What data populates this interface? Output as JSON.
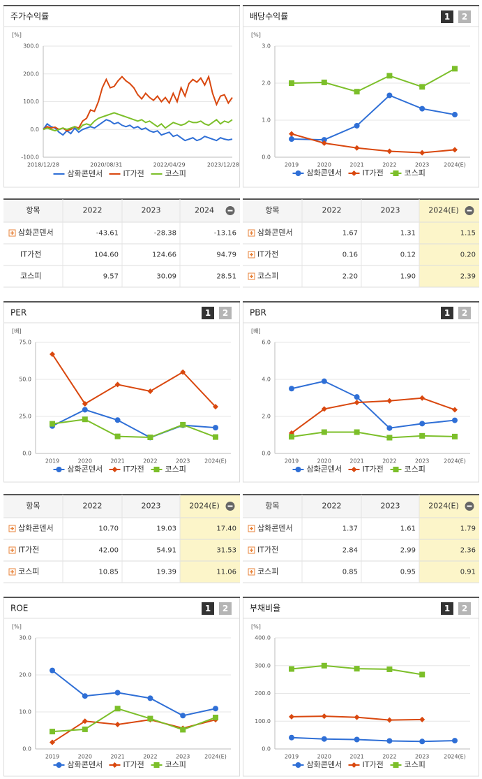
{
  "chart_data": [
    {
      "type": "line",
      "title": "주가수익률",
      "unit": "[%]",
      "markers": false,
      "grid": true,
      "categories": [
        "2018/12/28",
        null,
        null,
        null,
        null,
        null,
        null,
        null,
        null,
        null,
        null,
        null,
        null,
        null,
        null,
        null,
        "2020/08/31",
        null,
        null,
        null,
        null,
        null,
        null,
        null,
        null,
        null,
        null,
        null,
        null,
        null,
        null,
        null,
        "2022/04/29",
        null,
        null,
        null,
        null,
        null,
        null,
        null,
        null,
        null,
        null,
        null,
        null,
        null,
        null,
        null,
        "2023/12/28"
      ],
      "ylim": [
        -100,
        300
      ],
      "yticks": [
        {
          "value": -100,
          "label": "-100.0"
        },
        {
          "value": 0,
          "label": "0.0"
        },
        {
          "value": 100,
          "label": "100.0"
        },
        {
          "value": 200,
          "label": "200.0"
        },
        {
          "value": 300,
          "label": "300.0"
        }
      ],
      "series": [
        {
          "name": "삼화콘덴서",
          "color": "#2f6fd6",
          "values": [
            0,
            20,
            10,
            5,
            -10,
            -20,
            -5,
            -15,
            5,
            -10,
            0,
            5,
            10,
            5,
            15,
            25,
            35,
            30,
            20,
            25,
            15,
            10,
            15,
            5,
            10,
            0,
            5,
            -5,
            -10,
            -5,
            -20,
            -15,
            -10,
            -25,
            -20,
            -30,
            -40,
            -35,
            -30,
            -40,
            -35,
            -25,
            -30,
            -35,
            -40,
            -30,
            -35,
            -38,
            -35
          ]
        },
        {
          "name": "IT가전",
          "color": "#d9480f",
          "values": [
            0,
            10,
            5,
            8,
            0,
            5,
            -5,
            0,
            10,
            5,
            30,
            40,
            70,
            65,
            100,
            150,
            180,
            150,
            155,
            175,
            190,
            175,
            165,
            150,
            125,
            110,
            130,
            115,
            105,
            120,
            100,
            115,
            95,
            130,
            100,
            150,
            120,
            165,
            180,
            170,
            185,
            160,
            190,
            130,
            90,
            120,
            125,
            95,
            115
          ]
        },
        {
          "name": "코스피",
          "color": "#7cbf2a",
          "values": [
            0,
            5,
            0,
            -5,
            0,
            5,
            0,
            5,
            10,
            0,
            15,
            20,
            15,
            30,
            40,
            45,
            50,
            55,
            60,
            55,
            50,
            45,
            40,
            35,
            30,
            35,
            25,
            30,
            20,
            10,
            20,
            5,
            15,
            25,
            20,
            15,
            20,
            30,
            25,
            25,
            30,
            20,
            15,
            25,
            35,
            20,
            30,
            25,
            35
          ]
        }
      ]
    },
    {
      "type": "line",
      "title": "배당수익률",
      "tabs": [
        "1",
        "2"
      ],
      "unit": "[%]",
      "markers": true,
      "grid": true,
      "categories": [
        "2019",
        "2020",
        "2021",
        "2022",
        "2023",
        "2024(E)"
      ],
      "ylim": [
        0,
        3
      ],
      "yticks": [
        {
          "value": 0,
          "label": "0.0"
        },
        {
          "value": 1,
          "label": "1.0"
        },
        {
          "value": 2,
          "label": "2.0"
        },
        {
          "value": 3,
          "label": "3.0"
        }
      ],
      "series": [
        {
          "name": "삼화콘덴서",
          "color": "#2f6fd6",
          "values": [
            0.49,
            0.47,
            0.85,
            1.67,
            1.31,
            1.15
          ]
        },
        {
          "name": "IT가전",
          "color": "#d9480f",
          "values": [
            0.63,
            0.38,
            0.25,
            0.16,
            0.12,
            0.2
          ]
        },
        {
          "name": "코스피",
          "color": "#7cbf2a",
          "values": [
            2.0,
            2.02,
            1.77,
            2.2,
            1.9,
            2.39
          ]
        }
      ]
    },
    {
      "type": "line",
      "title": "PER",
      "tabs": [
        "1",
        "2"
      ],
      "unit": "[배]",
      "markers": true,
      "grid": true,
      "categories": [
        "2019",
        "2020",
        "2021",
        "2022",
        "2023",
        "2024(E)"
      ],
      "ylim": [
        0,
        75
      ],
      "yticks": [
        {
          "value": 0,
          "label": "0.0"
        },
        {
          "value": 25,
          "label": "25.0"
        },
        {
          "value": 50,
          "label": "50.0"
        },
        {
          "value": 75,
          "label": "75.0"
        }
      ],
      "series": [
        {
          "name": "삼화콘덴서",
          "color": "#2f6fd6",
          "values": [
            18.5,
            29.5,
            22.5,
            10.7,
            19.03,
            17.4
          ]
        },
        {
          "name": "IT가전",
          "color": "#d9480f",
          "values": [
            67,
            33.5,
            46.5,
            42.0,
            54.91,
            31.53
          ]
        },
        {
          "name": "코스피",
          "color": "#7cbf2a",
          "values": [
            20,
            23,
            11.5,
            10.85,
            19.39,
            11.06
          ]
        }
      ]
    },
    {
      "type": "line",
      "title": "PBR",
      "tabs": [
        "1",
        "2"
      ],
      "unit": "[배]",
      "markers": true,
      "grid": true,
      "categories": [
        "2019",
        "2020",
        "2021",
        "2022",
        "2023",
        "2024(E)"
      ],
      "ylim": [
        0,
        6
      ],
      "yticks": [
        {
          "value": 0,
          "label": "0.0"
        },
        {
          "value": 2,
          "label": "2.0"
        },
        {
          "value": 4,
          "label": "4.0"
        },
        {
          "value": 6,
          "label": "6.0"
        }
      ],
      "series": [
        {
          "name": "삼화콘덴서",
          "color": "#2f6fd6",
          "values": [
            3.5,
            3.9,
            3.05,
            1.37,
            1.61,
            1.79
          ]
        },
        {
          "name": "IT가전",
          "color": "#d9480f",
          "values": [
            1.1,
            2.4,
            2.75,
            2.84,
            2.99,
            2.36
          ]
        },
        {
          "name": "코스피",
          "color": "#7cbf2a",
          "values": [
            0.9,
            1.15,
            1.15,
            0.85,
            0.95,
            0.91
          ]
        }
      ]
    },
    {
      "type": "line",
      "title": "ROE",
      "tabs": [
        "1",
        "2"
      ],
      "unit": "[%]",
      "markers": true,
      "grid": true,
      "categories": [
        "2019",
        "2020",
        "2021",
        "2022",
        "2023",
        "2024(E)"
      ],
      "ylim": [
        0,
        30
      ],
      "yticks": [
        {
          "value": 0,
          "label": "0.0"
        },
        {
          "value": 10,
          "label": "10.0"
        },
        {
          "value": 20,
          "label": "20.0"
        },
        {
          "value": 30,
          "label": "30.0"
        }
      ],
      "series": [
        {
          "name": "삼화콘덴서",
          "color": "#2f6fd6",
          "values": [
            21.2,
            14.3,
            15.2,
            13.7,
            9.0,
            10.9
          ]
        },
        {
          "name": "IT가전",
          "color": "#d9480f",
          "values": [
            1.8,
            7.5,
            6.6,
            7.9,
            5.6,
            7.9
          ]
        },
        {
          "name": "코스피",
          "color": "#7cbf2a",
          "values": [
            4.7,
            5.3,
            10.9,
            8.2,
            5.2,
            8.5
          ]
        }
      ]
    },
    {
      "type": "line",
      "title": "부채비율",
      "tabs": [
        "1",
        "2"
      ],
      "unit": "[%]",
      "markers": true,
      "grid": true,
      "categories": [
        "2019",
        "2020",
        "2021",
        "2022",
        "2023",
        "2024(E)"
      ],
      "ylim": [
        0,
        400
      ],
      "yticks": [
        {
          "value": 0,
          "label": "0.0"
        },
        {
          "value": 100,
          "label": "100.0"
        },
        {
          "value": 200,
          "label": "200.0"
        },
        {
          "value": 300,
          "label": "300.0"
        },
        {
          "value": 400,
          "label": "400.0"
        }
      ],
      "series": [
        {
          "name": "삼화콘덴서",
          "color": "#2f6fd6",
          "values": [
            41,
            36,
            34,
            29,
            27,
            30
          ]
        },
        {
          "name": "IT가전",
          "color": "#d9480f",
          "values": [
            116,
            118,
            114,
            104,
            106,
            null
          ]
        },
        {
          "name": "코스피",
          "color": "#7cbf2a",
          "values": [
            288,
            300,
            289,
            287,
            268,
            null
          ]
        }
      ]
    }
  ],
  "tables": [
    {
      "header": [
        "항목",
        "2022",
        "2023",
        "2024"
      ],
      "collapse_icon": true,
      "highlight_last": false,
      "expandable": [
        true,
        false,
        false
      ],
      "rows": [
        [
          "삼화콘덴서",
          "-43.61",
          "-28.38",
          "-13.16"
        ],
        [
          "IT가전",
          "104.60",
          "124.66",
          "94.79"
        ],
        [
          "코스피",
          "9.57",
          "30.09",
          "28.51"
        ]
      ]
    },
    {
      "header": [
        "항목",
        "2022",
        "2023",
        "2024(E)"
      ],
      "collapse_icon": true,
      "highlight_last": true,
      "expandable": [
        true,
        true,
        true
      ],
      "rows": [
        [
          "삼화콘덴서",
          "1.67",
          "1.31",
          "1.15"
        ],
        [
          "IT가전",
          "0.16",
          "0.12",
          "0.20"
        ],
        [
          "코스피",
          "2.20",
          "1.90",
          "2.39"
        ]
      ]
    },
    {
      "header": [
        "항목",
        "2022",
        "2023",
        "2024(E)"
      ],
      "collapse_icon": true,
      "highlight_last": true,
      "expandable": [
        true,
        true,
        true
      ],
      "rows": [
        [
          "삼화콘덴서",
          "10.70",
          "19.03",
          "17.40"
        ],
        [
          "IT가전",
          "42.00",
          "54.91",
          "31.53"
        ],
        [
          "코스피",
          "10.85",
          "19.39",
          "11.06"
        ]
      ]
    },
    {
      "header": [
        "항목",
        "2022",
        "2023",
        "2024(E)"
      ],
      "collapse_icon": true,
      "highlight_last": true,
      "expandable": [
        true,
        true,
        true
      ],
      "rows": [
        [
          "삼화콘덴서",
          "1.37",
          "1.61",
          "1.79"
        ],
        [
          "IT가전",
          "2.84",
          "2.99",
          "2.36"
        ],
        [
          "코스피",
          "0.85",
          "0.95",
          "0.91"
        ]
      ]
    }
  ]
}
